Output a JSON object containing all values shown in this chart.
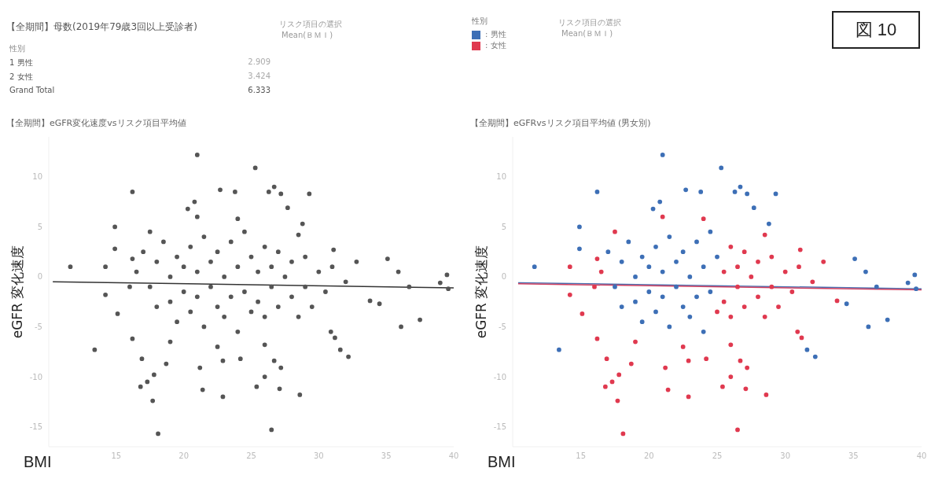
{
  "chart_data": [
    {
      "type": "other",
      "title": "【全期間】母数(2019年79歳3回以上受診者)",
      "legend_title": "性別",
      "categories": [
        "1 男性",
        "2 女性",
        "Grand Total"
      ],
      "values": [
        2909,
        3424,
        6333
      ],
      "value_labels": [
        "2.909",
        "3.424",
        "6.333"
      ],
      "annotations": [
        "リスク項目の選択",
        "Mean(ＢＭＩ)"
      ]
    },
    {
      "type": "scatter",
      "title": "【全期間】eGFR変化速度vsリスク項目平均値",
      "xlabel": "BMI",
      "ylabel": "eGFR 変化速度",
      "xlim": [
        10,
        40
      ],
      "xticks": [
        15,
        20,
        25,
        30,
        35,
        40
      ],
      "ylim": [
        -17,
        14
      ],
      "yticks": [
        -15,
        -10,
        -5,
        0,
        5,
        10
      ],
      "marker": "circle",
      "series": [
        {
          "color": "#555555",
          "x": [
            21.0,
            25.3,
            16.2,
            22.7,
            23.8,
            26.3,
            26.7,
            27.2,
            29.3,
            20.8,
            20.3,
            27.7,
            14.9,
            28.8,
            14.9,
            11.6,
            35.1,
            35.9,
            39.5,
            39.0,
            39.6,
            36.7,
            37.5,
            36.1,
            34.5,
            13.4,
            31.6,
            32.2,
            16.9,
            18.7,
            16.8,
            17.3,
            17.8,
            17.7,
            21.4,
            22.9,
            25.4,
            26.0,
            27.1,
            28.6,
            26.5,
            18.1,
            21.2,
            22.9,
            24.2,
            26.7,
            27.2,
            31.2,
            30.9,
            16.2,
            15.1,
            14.2,
            14.2,
            31.1,
            32.8,
            33.8,
            17,
            17.5,
            18,
            18,
            18.5,
            19,
            19,
            19.5,
            19.5,
            20,
            20,
            20.5,
            20.5,
            21,
            21,
            21.5,
            21.5,
            22,
            22,
            22.5,
            22.5,
            23,
            23,
            23.5,
            23.5,
            24,
            24,
            24.5,
            24.5,
            25,
            25,
            25.5,
            25.5,
            26,
            26,
            26.5,
            26.5,
            27,
            27,
            27.5,
            28,
            28,
            28.5,
            29,
            29,
            29.5,
            30,
            30.5,
            31,
            32,
            16.5,
            16,
            16.2,
            21,
            24,
            19,
            26,
            22.5,
            17.5,
            28.5
          ],
          "values": [
            12.2,
            10.9,
            8.5,
            8.7,
            8.5,
            8.5,
            9.0,
            8.3,
            8.3,
            7.5,
            6.8,
            6.9,
            5.0,
            5.3,
            2.8,
            1.0,
            1.8,
            0.5,
            0.2,
            -0.6,
            -1.2,
            -1.0,
            -4.3,
            -5.0,
            -2.7,
            -7.3,
            -7.3,
            -8.0,
            -8.2,
            -8.7,
            -11.0,
            -10.5,
            -9.8,
            -12.4,
            -11.3,
            -12.0,
            -11.0,
            -10.0,
            -11.2,
            -11.8,
            -15.3,
            -15.7,
            -9.1,
            -8.4,
            -8.2,
            -8.4,
            -9.1,
            -6.1,
            -5.5,
            -6.2,
            -3.7,
            -1.8,
            1.0,
            2.7,
            1.5,
            -2.4,
            2.5,
            -1,
            1.5,
            -3,
            3.5,
            0,
            -2.5,
            2,
            -4.5,
            1,
            -1.5,
            3,
            -3.5,
            0.5,
            -2,
            4,
            -5,
            1.5,
            -1,
            2.5,
            -3,
            0,
            -4,
            3.5,
            -2,
            1,
            -5.5,
            4.5,
            -1.5,
            2,
            -3.5,
            0.5,
            -2.5,
            3,
            -4,
            1,
            -1,
            2.5,
            -3,
            0,
            1.5,
            -2,
            -4,
            2,
            -1,
            -3,
            0.5,
            -1.5,
            1,
            -0.5,
            0.5,
            -1,
            1.8,
            6,
            5.8,
            -6.5,
            -6.8,
            -7,
            4.5,
            4.2
          ]
        },
        {
          "type": "line",
          "marker": "none",
          "color": "#333333",
          "x": [
            10.3,
            40
          ],
          "values": [
            -0.5,
            -1.1
          ]
        }
      ]
    },
    {
      "type": "scatter",
      "title": "【全期間】eGFRvsリスク項目平均値 (男女別)",
      "xlabel": "BMI",
      "ylabel": "eGFR 変化速度",
      "legend_title": "性別",
      "legend": "top left",
      "annotations": [
        "リスク項目の選択",
        "Mean(ＢＭＩ)",
        "図 10"
      ],
      "xlim": [
        10,
        40
      ],
      "xticks": [
        15,
        20,
        25,
        30,
        35,
        40
      ],
      "ylim": [
        -17,
        14
      ],
      "yticks": [
        -15,
        -10,
        -5,
        0,
        5,
        10
      ],
      "marker": "circle",
      "series": [
        {
          "name": ": 男性",
          "color": "#3d6fb6",
          "x": [
            21.0,
            25.3,
            16.2,
            22.7,
            23.8,
            26.3,
            26.7,
            27.2,
            29.3,
            20.8,
            20.3,
            27.7,
            14.9,
            28.8,
            14.9,
            11.6,
            35.1,
            35.9,
            39.5,
            39.0,
            39.6,
            36.7,
            37.5,
            36.1,
            34.5,
            13.4,
            31.6,
            32.2,
            17,
            17.5,
            18,
            18,
            18.5,
            19,
            19,
            19.5,
            19.5,
            20,
            20,
            20.5,
            20.5,
            21,
            21,
            21.5,
            21.5,
            22,
            22,
            22.5,
            22.5,
            23,
            23,
            23.5,
            23.5,
            24,
            24,
            24.5,
            24.5,
            25
          ],
          "values": [
            12.2,
            10.9,
            8.5,
            8.7,
            8.5,
            8.5,
            9.0,
            8.3,
            8.3,
            7.5,
            6.8,
            6.9,
            5.0,
            5.3,
            2.8,
            1.0,
            1.8,
            0.5,
            0.2,
            -0.6,
            -1.2,
            -1.0,
            -4.3,
            -5.0,
            -2.7,
            -7.3,
            -7.3,
            -8.0,
            2.5,
            -1,
            1.5,
            -3,
            3.5,
            0,
            -2.5,
            2,
            -4.5,
            1,
            -1.5,
            3,
            -3.5,
            0.5,
            -2,
            4,
            -5,
            1.5,
            -1,
            2.5,
            -3,
            0,
            -4,
            3.5,
            -2,
            1,
            -5.5,
            4.5,
            -1.5,
            2
          ]
        },
        {
          "name": ": 女性",
          "color": "#e0394f",
          "x": [
            16.9,
            18.7,
            16.8,
            17.3,
            17.8,
            17.7,
            21.4,
            22.9,
            25.4,
            26.0,
            27.1,
            28.6,
            26.5,
            18.1,
            21.2,
            22.9,
            24.2,
            26.7,
            27.2,
            31.2,
            30.9,
            16.2,
            15.1,
            14.2,
            14.2,
            31.1,
            32.8,
            33.8,
            25,
            25.5,
            25.5,
            26,
            26,
            26.5,
            26.5,
            27,
            27,
            27.5,
            28,
            28,
            28.5,
            29,
            29,
            29.5,
            30,
            30.5,
            31,
            32,
            16.5,
            16,
            16.2,
            21,
            24,
            19,
            26,
            22.5,
            17.5,
            28.5
          ],
          "values": [
            -8.2,
            -8.7,
            -11.0,
            -10.5,
            -9.8,
            -12.4,
            -11.3,
            -12.0,
            -11.0,
            -10.0,
            -11.2,
            -11.8,
            -15.3,
            -15.7,
            -9.1,
            -8.4,
            -8.2,
            -8.4,
            -9.1,
            -6.1,
            -5.5,
            -6.2,
            -3.7,
            -1.8,
            1.0,
            2.7,
            1.5,
            -2.4,
            -3.5,
            0.5,
            -2.5,
            3,
            -4,
            1,
            -1,
            2.5,
            -3,
            0,
            1.5,
            -2,
            -4,
            2,
            -1,
            -3,
            0.5,
            -1.5,
            1,
            -0.5,
            0.5,
            -1,
            1.8,
            6,
            5.8,
            -6.5,
            -6.8,
            -7,
            4.5,
            4.2
          ]
        },
        {
          "type": "line",
          "marker": "none",
          "color": "#4a6fb0",
          "x": [
            10.4,
            40
          ],
          "values": [
            -0.6,
            -1.2
          ]
        },
        {
          "type": "line",
          "marker": "none",
          "color": "#d04060",
          "x": [
            10.4,
            40
          ],
          "values": [
            -0.7,
            -1.3
          ]
        }
      ]
    }
  ]
}
